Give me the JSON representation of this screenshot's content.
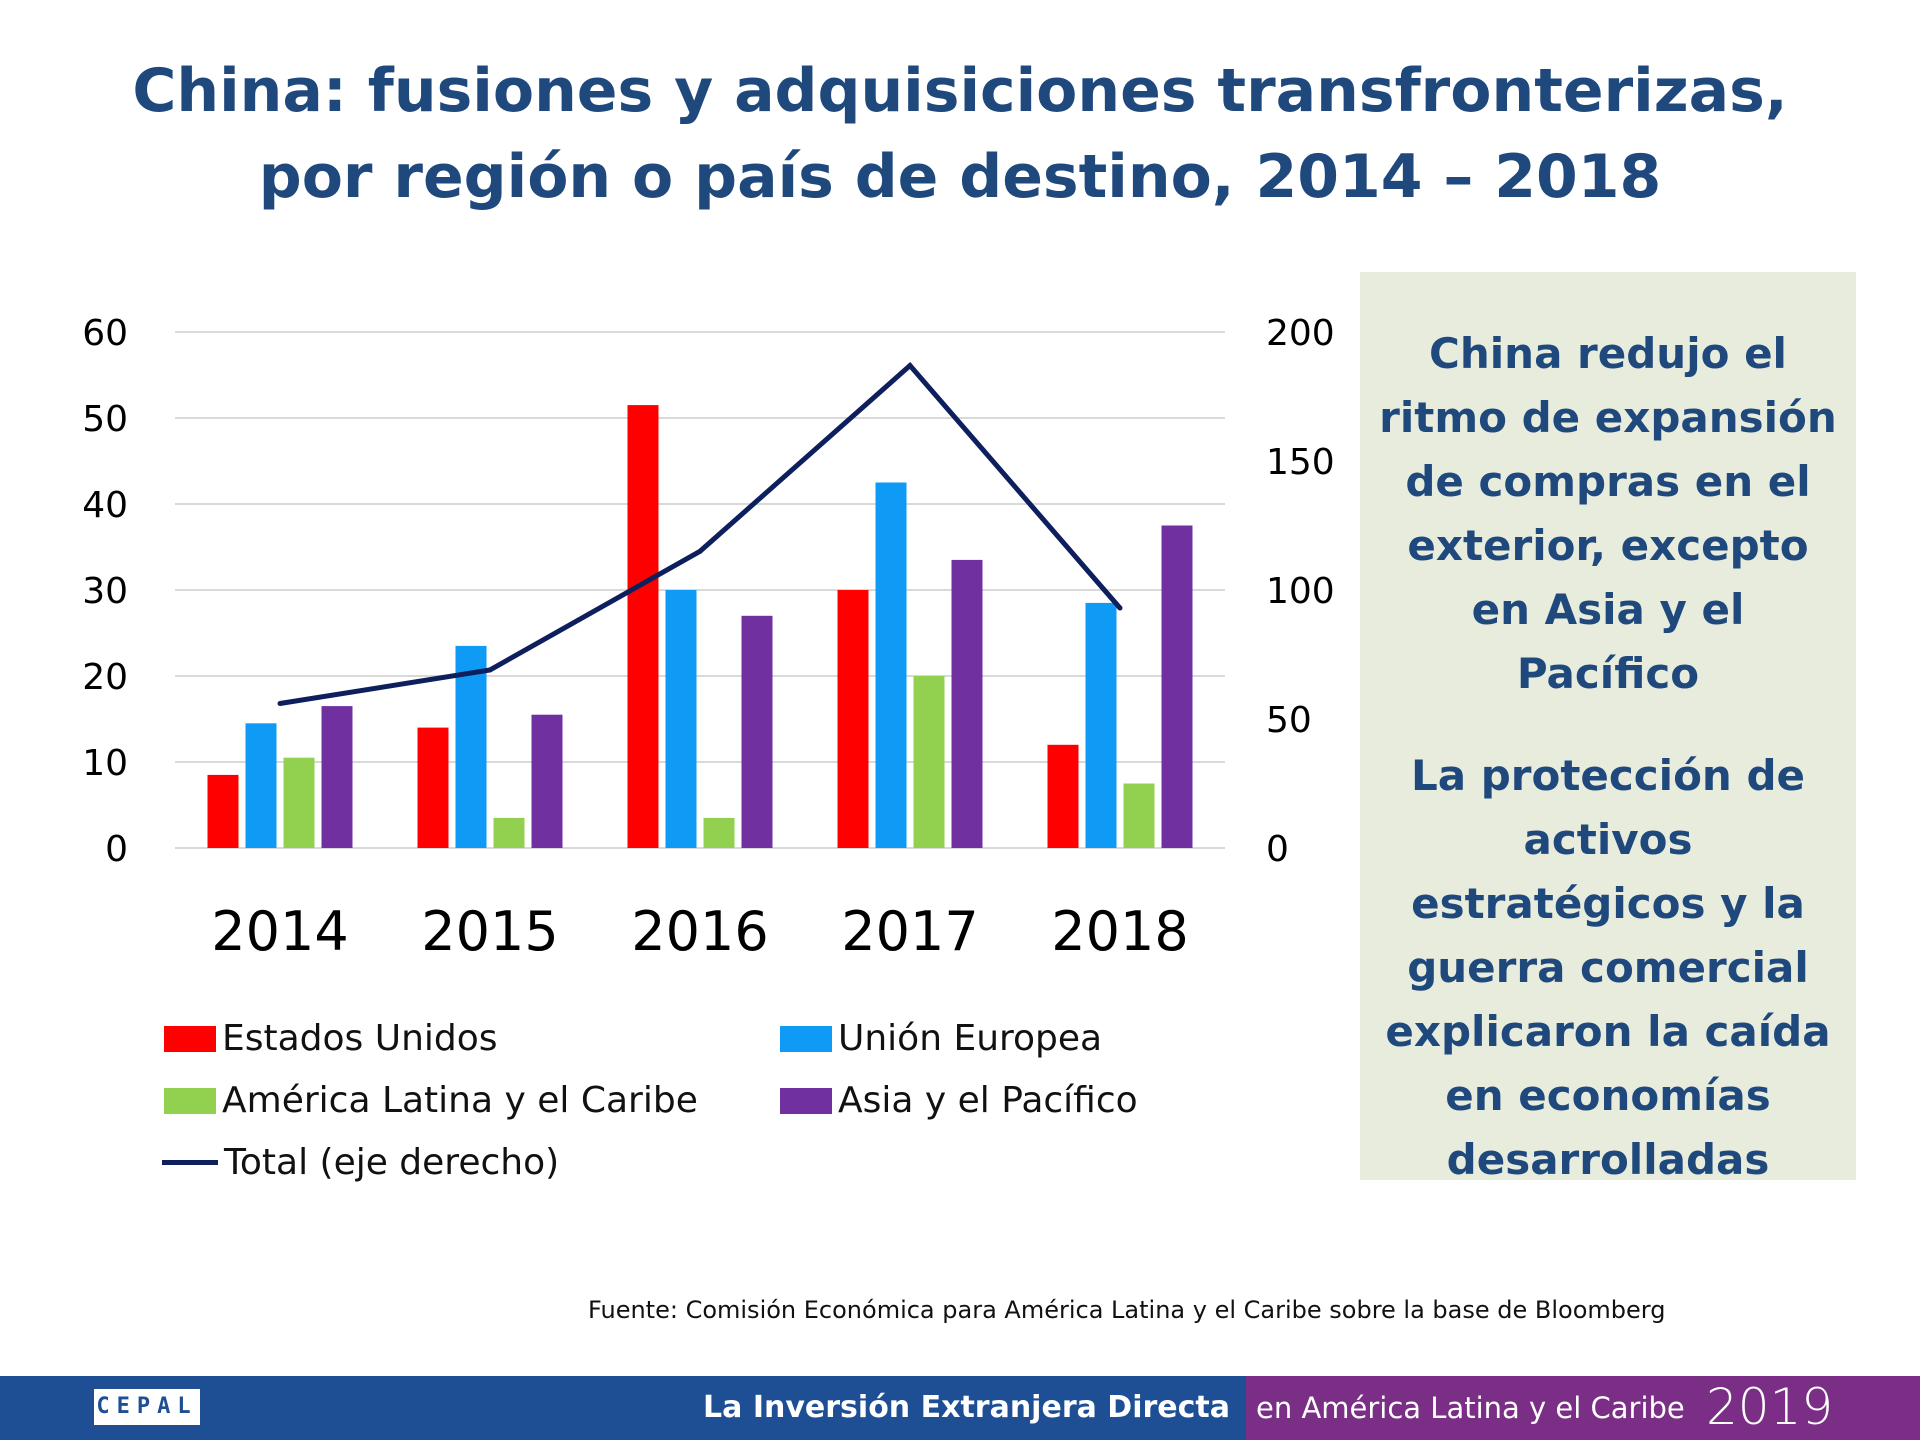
{
  "title": {
    "line1": "China: fusiones y adquisiciones transfronterizas,",
    "line2": "por región o país de destino, 2014 – 2018"
  },
  "colors": {
    "title": "#1F497D",
    "estados_unidos": "#FF0000",
    "union_europea": "#0F9BF5",
    "america_latina": "#92D050",
    "asia_pacifico": "#7030A0",
    "total": "#0D1F5C",
    "note_background": "#E8ECDD",
    "footer_left": "#1E4F95",
    "footer_right": "#7A2E85"
  },
  "chart_data": {
    "type": "bar",
    "categories": [
      "2014",
      "2015",
      "2016",
      "2017",
      "2018"
    ],
    "series": [
      {
        "name": "Estados Unidos",
        "values": [
          8.5,
          14,
          51.5,
          30,
          12
        ],
        "color": "#FF0000",
        "axis": "left"
      },
      {
        "name": "Unión Europea",
        "values": [
          14.5,
          23.5,
          30,
          42.5,
          28.5
        ],
        "color": "#0F9BF5",
        "axis": "left"
      },
      {
        "name": "América Latina y el Caribe",
        "values": [
          10.5,
          3.5,
          3.5,
          20,
          7.5
        ],
        "color": "#92D050",
        "axis": "left"
      },
      {
        "name": "Asia y el Pacífico",
        "values": [
          16.5,
          15.5,
          27,
          33.5,
          37.5
        ],
        "color": "#7030A0",
        "axis": "left"
      },
      {
        "name": "Total (eje derecho)",
        "type": "line",
        "values": [
          56,
          69,
          115,
          187,
          93
        ],
        "color": "#0D1F5C",
        "axis": "right"
      }
    ],
    "ylim": [
      0,
      60
    ],
    "y_ticks": [
      "0",
      "10",
      "20",
      "30",
      "40",
      "50",
      "60"
    ],
    "y2lim": [
      0,
      200
    ],
    "y2_ticks": [
      "0",
      "50",
      "100",
      "150",
      "200"
    ],
    "grid": true,
    "legend_position": "bottom"
  },
  "note": {
    "p1": "China redujo el ritmo de expansión de compras en el exterior, excepto en Asia y el Pacífico",
    "p2": "La protección de activos estratégicos y la guerra comercial explicaron la caída en economías desarrolladas"
  },
  "source": "Fuente: Comisión Económica para América Latina y el Caribe sobre la base de Bloomberg",
  "footer": {
    "logo": "CEPAL",
    "left_text": "La Inversión Extranjera Directa",
    "right_text": "en América Latina y el Caribe",
    "year": "2019"
  }
}
